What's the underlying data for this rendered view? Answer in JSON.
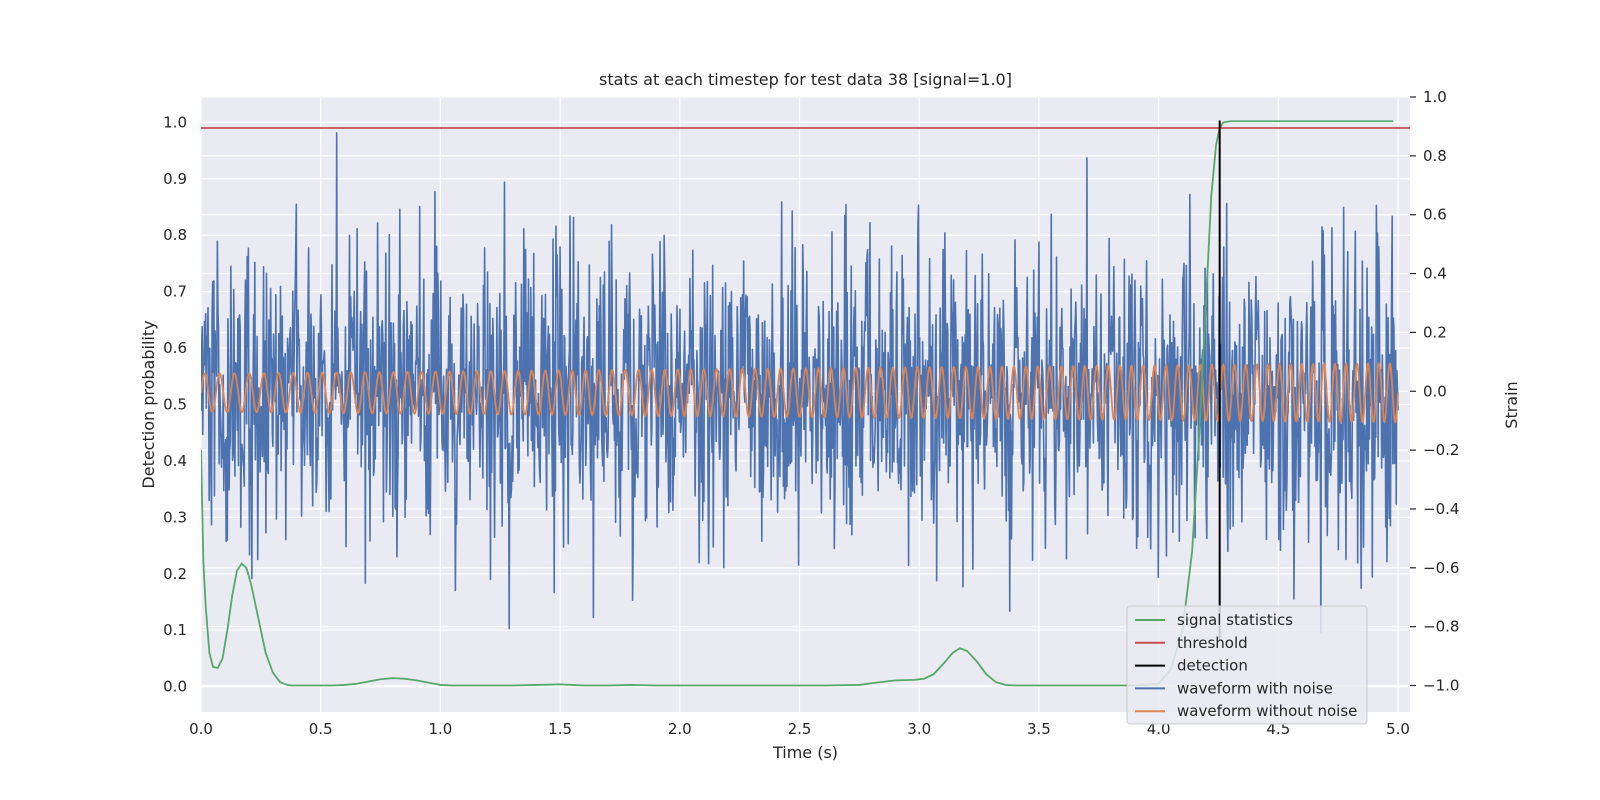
{
  "chart_data": {
    "type": "line",
    "title": "stats at each timestep for test data 38 [signal=1.0]",
    "xlabel": "Time (s)",
    "ylabel": "Detection probability",
    "y2label": "Strain",
    "xlim": [
      0.0,
      5.05
    ],
    "ylim": [
      -0.045,
      1.045
    ],
    "y2lim": [
      -1.09,
      1.0
    ],
    "grid": true,
    "legend_position": "lower-right",
    "x_ticks": [
      "0.0",
      "0.5",
      "1.0",
      "1.5",
      "2.0",
      "2.5",
      "3.0",
      "3.5",
      "4.0",
      "4.5",
      "5.0"
    ],
    "y_ticks": [
      "0.0",
      "0.1",
      "0.2",
      "0.3",
      "0.4",
      "0.5",
      "0.6",
      "0.7",
      "0.8",
      "0.9",
      "1.0"
    ],
    "y2_ticks": [
      "−1.0",
      "−0.8",
      "−0.6",
      "−0.4",
      "−0.2",
      "0.0",
      "0.2",
      "0.4",
      "0.6",
      "0.8",
      "1.0"
    ],
    "colors": {
      "signal_statistics": "#55a868",
      "threshold": "#c44e52",
      "detection": "#000000",
      "waveform_noise": "#4c72b0",
      "waveform_clean": "#dd8452",
      "plot_bg": "#eaeaf2",
      "grid": "#ffffff"
    },
    "threshold": 0.99,
    "detection_time": 4.255,
    "waveform_noise": {
      "axis": "right",
      "samples": 2048,
      "t_start": 0.0,
      "t_end": 5.0,
      "std": 0.24,
      "peak_max": 0.93,
      "peak_min": -0.82
    },
    "waveform_clean": {
      "axis": "right",
      "amplitude_start": 0.065,
      "amplitude_end": 0.1,
      "freq_start": 16.0,
      "freq_end": 22.0,
      "offset": -0.005
    },
    "series": [
      {
        "name": "signal statistics",
        "axis": "left",
        "x": [
          0.0,
          0.01,
          0.02,
          0.035,
          0.05,
          0.07,
          0.09,
          0.11,
          0.13,
          0.15,
          0.17,
          0.19,
          0.21,
          0.23,
          0.25,
          0.27,
          0.3,
          0.33,
          0.36,
          0.38,
          0.4,
          0.45,
          0.5,
          0.55,
          0.6,
          0.65,
          0.7,
          0.75,
          0.8,
          0.85,
          0.9,
          0.95,
          1.0,
          1.05,
          1.1,
          1.2,
          1.3,
          1.4,
          1.5,
          1.55,
          1.6,
          1.7,
          1.8,
          1.9,
          2.0,
          2.2,
          2.4,
          2.6,
          2.75,
          2.8,
          2.9,
          2.98,
          3.02,
          3.06,
          3.1,
          3.14,
          3.17,
          3.2,
          3.24,
          3.28,
          3.32,
          3.36,
          3.4,
          3.5,
          3.7,
          3.9,
          4.0,
          4.05,
          4.1,
          4.14,
          4.17,
          4.2,
          4.22,
          4.24,
          4.255,
          4.27,
          4.3,
          4.4,
          4.6,
          4.8,
          4.98
        ],
        "values": [
          0.42,
          0.22,
          0.14,
          0.06,
          0.035,
          0.033,
          0.05,
          0.1,
          0.16,
          0.205,
          0.218,
          0.21,
          0.18,
          0.14,
          0.1,
          0.06,
          0.025,
          0.008,
          0.003,
          0.002,
          0.002,
          0.002,
          0.002,
          0.002,
          0.003,
          0.005,
          0.009,
          0.013,
          0.015,
          0.014,
          0.011,
          0.007,
          0.003,
          0.002,
          0.002,
          0.002,
          0.002,
          0.003,
          0.004,
          0.003,
          0.002,
          0.002,
          0.003,
          0.002,
          0.002,
          0.002,
          0.002,
          0.002,
          0.003,
          0.006,
          0.011,
          0.012,
          0.014,
          0.022,
          0.04,
          0.06,
          0.068,
          0.063,
          0.045,
          0.022,
          0.008,
          0.003,
          0.002,
          0.002,
          0.002,
          0.002,
          0.005,
          0.03,
          0.1,
          0.24,
          0.45,
          0.7,
          0.87,
          0.96,
          0.99,
          1.0,
          1.002,
          1.002,
          1.002,
          1.002,
          1.002
        ]
      },
      {
        "name": "threshold",
        "axis": "left",
        "x": [
          0.0,
          5.05
        ],
        "values": [
          0.99,
          0.99
        ]
      },
      {
        "name": "detection",
        "axis": "right",
        "x": [
          4.255,
          4.255
        ],
        "values": [
          -0.85,
          0.92
        ]
      },
      {
        "name": "waveform with noise",
        "axis": "right"
      },
      {
        "name": "waveform without noise",
        "axis": "right"
      }
    ],
    "legend": [
      "signal statistics",
      "threshold",
      "detection",
      "waveform with noise",
      "waveform without noise"
    ]
  }
}
